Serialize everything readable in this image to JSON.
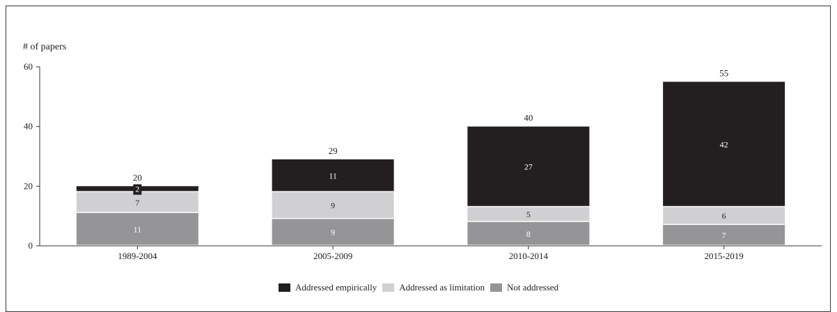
{
  "chart_data": {
    "type": "bar",
    "stacked": true,
    "title": "",
    "xlabel": "",
    "ylabel": "# of papers",
    "ylim": [
      0,
      60
    ],
    "yticks": [
      "0",
      "20",
      "40",
      "60"
    ],
    "categories": [
      "1989-2004",
      "2005-2009",
      "2010-2014",
      "2015-2019"
    ],
    "totals": [
      "20",
      "29",
      "40",
      "55"
    ],
    "series": [
      {
        "name": "Not addressed",
        "color": "#959597",
        "labelColor": "#ffffff",
        "values": [
          11,
          9,
          8,
          7
        ],
        "labels": [
          "11",
          "9",
          "8",
          "7"
        ]
      },
      {
        "name": "Addressed as limitation",
        "color": "#d0d0d2",
        "labelColor": "#222222",
        "values": [
          7,
          9,
          5,
          6
        ],
        "labels": [
          "7",
          "9",
          "5",
          "6"
        ]
      },
      {
        "name": "Addressed empirically",
        "color": "#231f20",
        "labelColor": "#ffffff",
        "values": [
          2,
          11,
          27,
          42
        ],
        "labels": [
          "2",
          "11",
          "27",
          "42"
        ]
      }
    ],
    "legend_order": [
      "Addressed empirically",
      "Addressed as limitation",
      "Not addressed"
    ],
    "legend_position": "bottom"
  }
}
